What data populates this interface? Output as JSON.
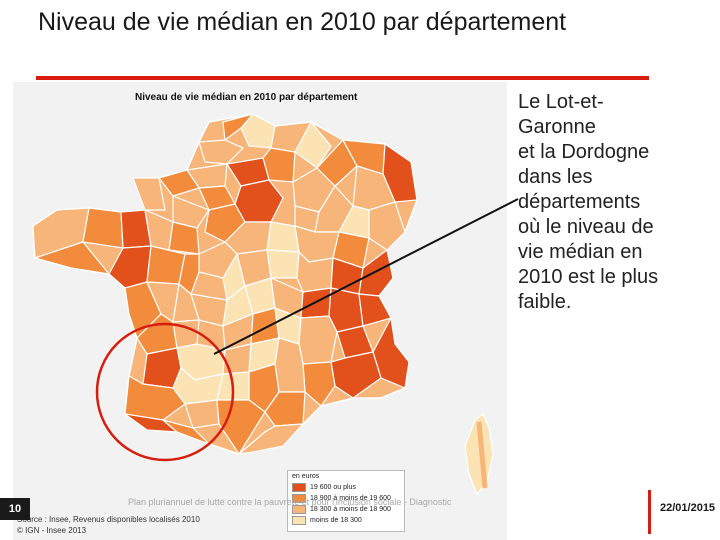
{
  "slide": {
    "title": "Niveau de vie médian en 2010 par département",
    "callout": "Le Lot-et-\nGaronne\net la Dordogne\ndans les\ndépartements\noù le niveau de\nvie médian en\n2010 est le plus\nfaible.",
    "page_number": "10",
    "footer": "Plan pluriannuel de lutte contre la pauvreté et pour l'inclusion sociale - Diagnostic",
    "date": "22/01/2015"
  },
  "map": {
    "title": "Niveau de vie médian en 2010 par département",
    "legend_title": "en euros",
    "legend_items": [
      {
        "label": "19 600 ou plus",
        "color": "#e2501c"
      },
      {
        "label": "18 900 à moins de 19 600",
        "color": "#f28c3c"
      },
      {
        "label": "18 300 à moins de 18 900",
        "color": "#f7b57a"
      },
      {
        "label": "moins de 18 300",
        "color": "#fbe3b4"
      }
    ],
    "source": "Source : Insee, Revenus disponibles localisés 2010\n© IGN - Insee 2013",
    "colors": {
      "highest": "#e2501c",
      "high": "#f28c3c",
      "low": "#f7b57a",
      "lowest": "#fbe3b4",
      "highlight": "#d71e0e"
    }
  }
}
